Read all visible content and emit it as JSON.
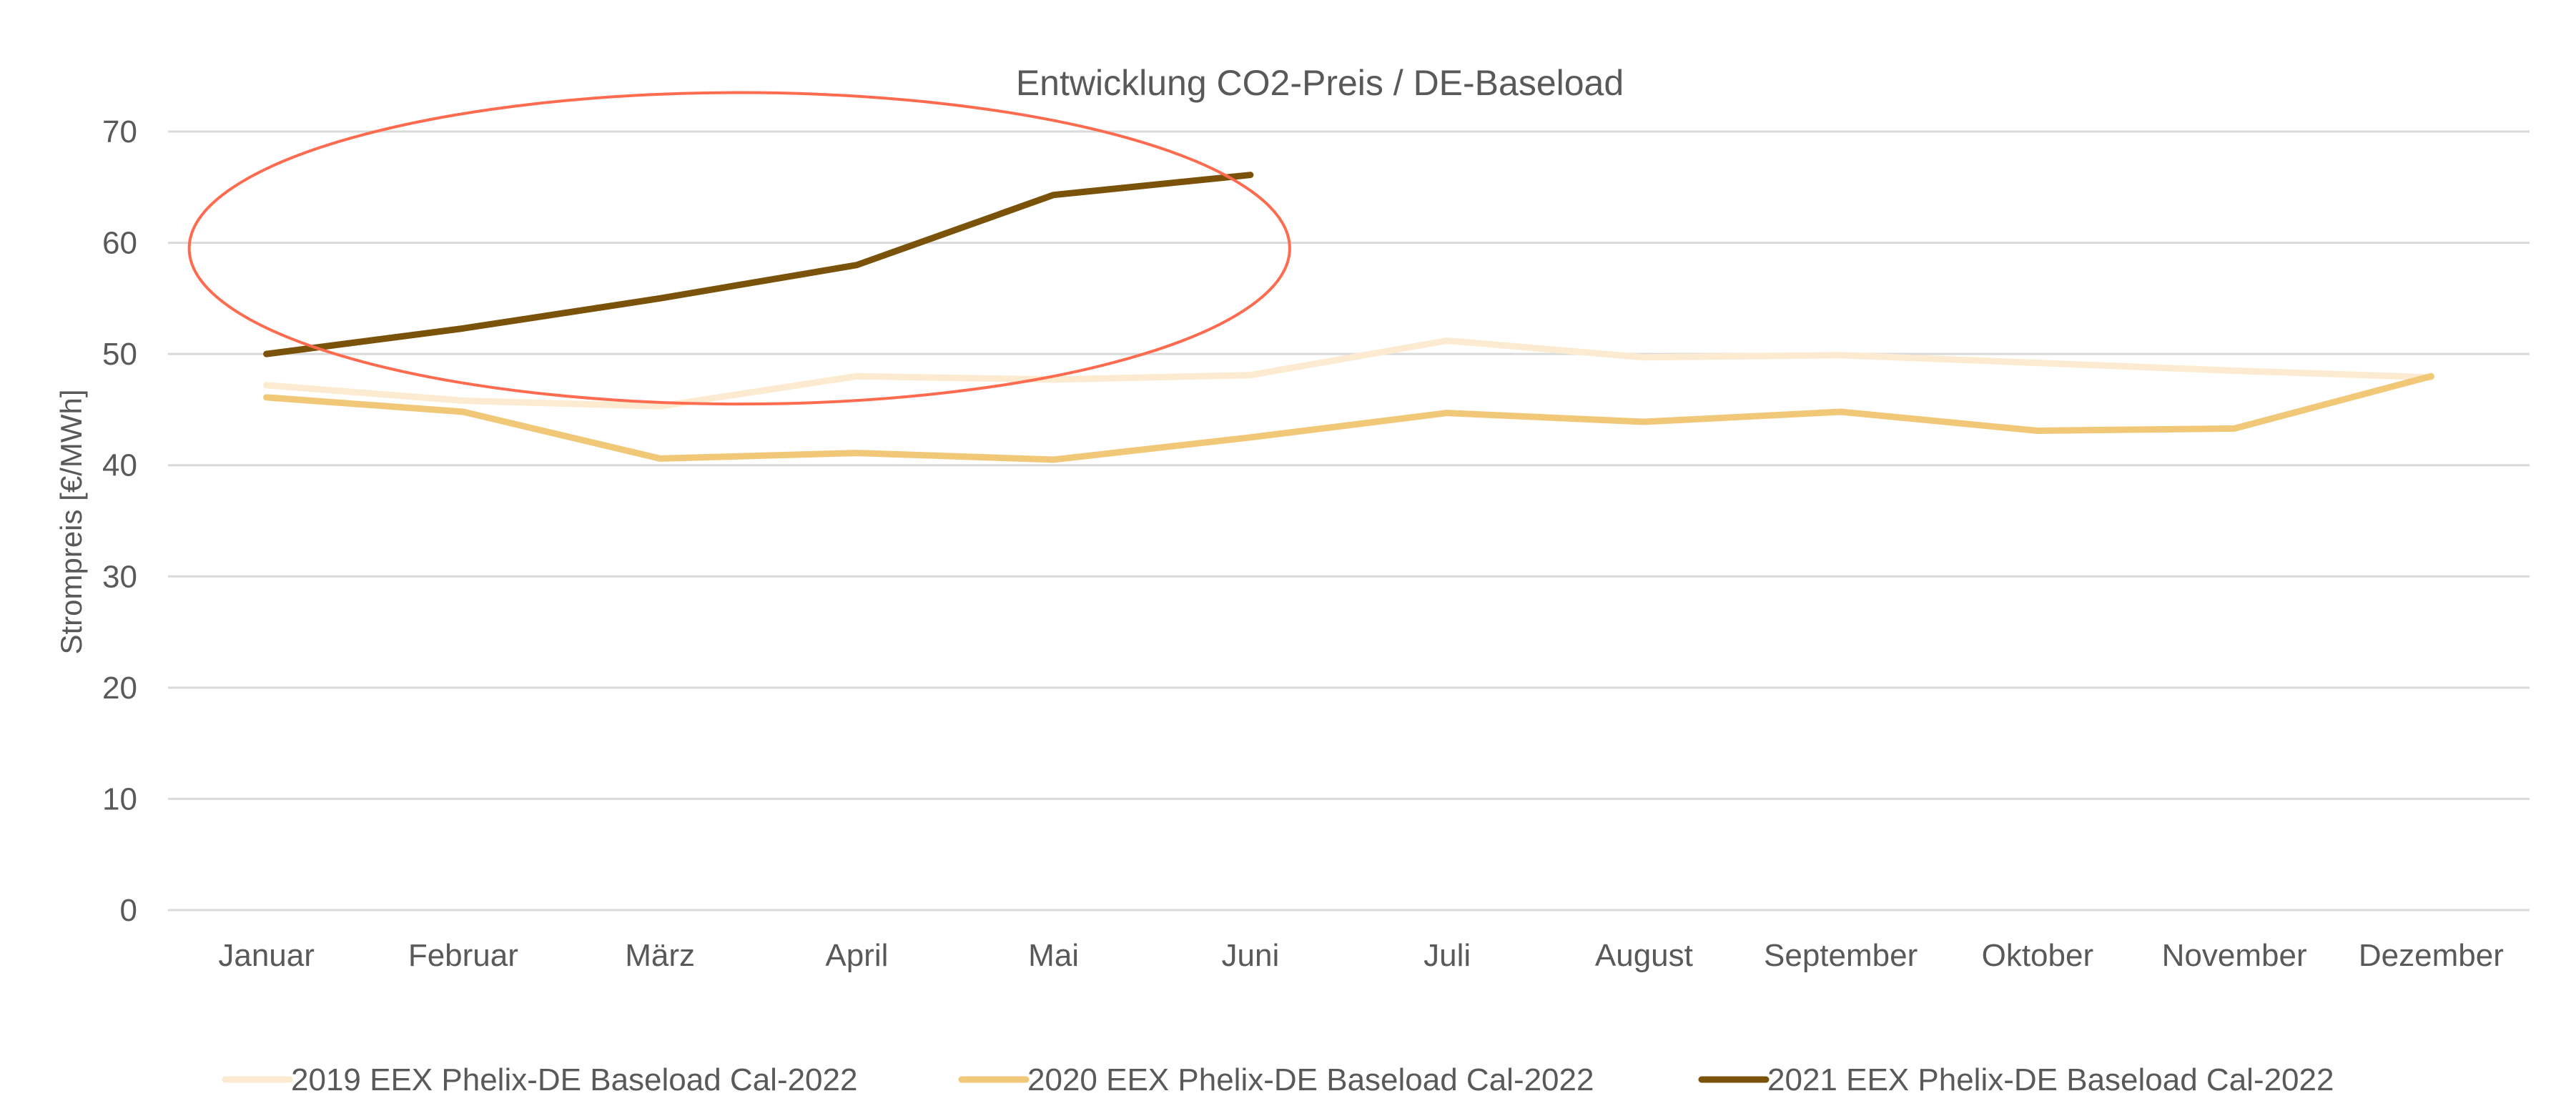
{
  "chart_data": {
    "type": "line",
    "title": "Entwicklung CO2-Preis / DE-Baseload",
    "xlabel": "",
    "ylabel": "Strompreis [€/MWh]",
    "ylim": [
      0,
      70
    ],
    "yticks": [
      0,
      10,
      20,
      30,
      40,
      50,
      60,
      70
    ],
    "grid": true,
    "legend_position": "bottom",
    "categories": [
      "Januar",
      "Februar",
      "März",
      "April",
      "Mai",
      "Juni",
      "Juli",
      "August",
      "September",
      "Oktober",
      "November",
      "Dezember"
    ],
    "series": [
      {
        "name": "2019 EEX Phelix-DE Baseload Cal-2022",
        "color": "#FCEBD0",
        "values": [
          47.2,
          45.8,
          45.3,
          48.0,
          47.7,
          48.1,
          51.2,
          49.7,
          49.9,
          49.2,
          48.5,
          47.9
        ]
      },
      {
        "name": "2020 EEX Phelix-DE Baseload Cal-2022",
        "color": "#F0C878",
        "values": [
          46.1,
          44.8,
          40.6,
          41.1,
          40.5,
          42.5,
          44.7,
          43.9,
          44.8,
          43.1,
          43.3,
          48.0
        ]
      },
      {
        "name": "2021 EEX Phelix-DE Baseload Cal-2022",
        "color": "#7A520A",
        "values": [
          50.0,
          52.3,
          55.0,
          58.0,
          64.3,
          66.1,
          null,
          null,
          null,
          null,
          null,
          null
        ]
      }
    ],
    "annotations": [
      {
        "type": "ellipse",
        "color": "#FF6B4F",
        "description": "highlight around 2021 series Jan–Jun",
        "x_range": [
          "Januar",
          "Juni"
        ],
        "y_range": [
          45.5,
          73.5
        ]
      }
    ],
    "gridline_color": "#D9D9D9",
    "text_color": "#595959"
  }
}
